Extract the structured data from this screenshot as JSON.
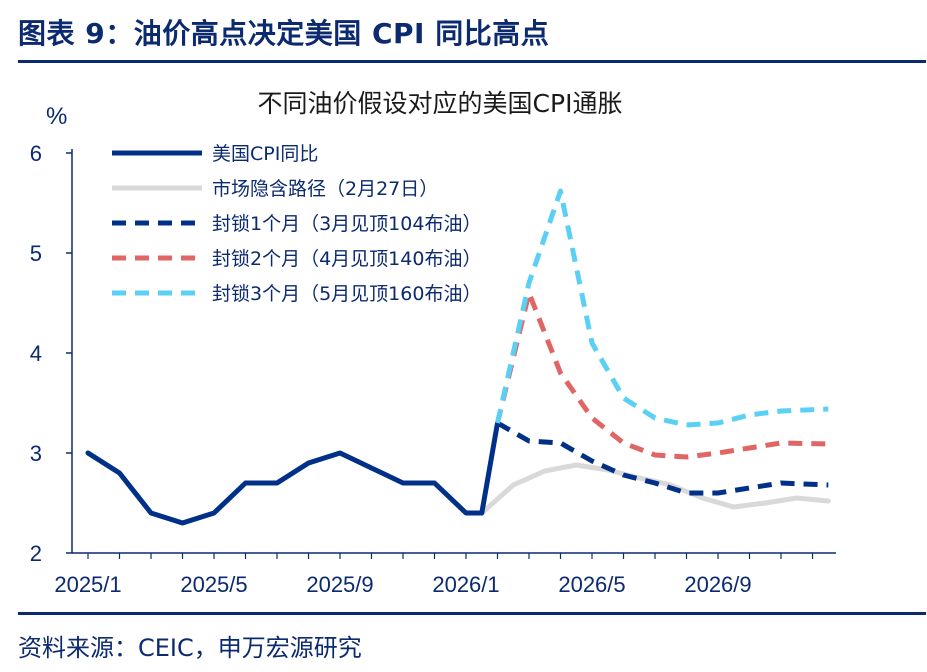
{
  "figure_title": "图表 9：油价高点决定美国 CPI 同比高点",
  "source": "资料来源：CEIC，申万宏源研究",
  "colors": {
    "navy": "#003087",
    "grey": "#d9d9d9",
    "red": "#e06666",
    "cyan": "#5bd0f5",
    "axis": "#0b2a6f"
  },
  "chart_data": {
    "type": "line",
    "title": "不同油价假设对应的美国CPI通胀",
    "ylabel": "%",
    "xlabel": "",
    "ylim": [
      2,
      6
    ],
    "yticks": [
      "2",
      "3",
      "4",
      "5",
      "6"
    ],
    "xlim": [
      0,
      23.5
    ],
    "xticks": [
      {
        "label": "2025/1",
        "x": 0
      },
      {
        "label": "2025/5",
        "x": 4
      },
      {
        "label": "2025/9",
        "x": 8
      },
      {
        "label": "2026/1",
        "x": 12
      },
      {
        "label": "2026/5",
        "x": 16
      },
      {
        "label": "2026/9",
        "x": 20
      }
    ],
    "grid": false,
    "legend_position": "top-left",
    "series": [
      {
        "name": "美国CPI同比",
        "color": "#003087",
        "style": "solid",
        "width": 5,
        "x": [
          0,
          1,
          2,
          3,
          4,
          5,
          6,
          7,
          8,
          9,
          10,
          11,
          12,
          12.5,
          13
        ],
        "y": [
          3.0,
          2.8,
          2.4,
          2.3,
          2.4,
          2.7,
          2.7,
          2.9,
          3.0,
          2.85,
          2.7,
          2.7,
          2.4,
          2.4,
          3.3
        ]
      },
      {
        "name": "市场隐含路径（2月27日）",
        "color": "#d9d9d9",
        "style": "solid",
        "width": 5,
        "x": [
          12.5,
          13.5,
          14.5,
          15.5,
          16.5,
          17.5,
          18.5,
          19.5,
          20.5,
          21.5,
          22.5,
          23.5
        ],
        "y": [
          2.4,
          2.68,
          2.82,
          2.88,
          2.83,
          2.75,
          2.68,
          2.55,
          2.46,
          2.5,
          2.55,
          2.52
        ]
      },
      {
        "name": "封锁1个月（3月见顶104布油）",
        "color": "#003087",
        "style": "dashed",
        "width": 5,
        "x": [
          13,
          14,
          15,
          16,
          17,
          18,
          19,
          20,
          21,
          22,
          23.5
        ],
        "y": [
          3.3,
          3.12,
          3.1,
          2.92,
          2.78,
          2.7,
          2.6,
          2.6,
          2.65,
          2.7,
          2.68
        ]
      },
      {
        "name": "封锁2个月（4月见顶140布油）",
        "color": "#e06666",
        "style": "dashed",
        "width": 5,
        "x": [
          13,
          14,
          15,
          16,
          17,
          18,
          19,
          20,
          21,
          22,
          23.5
        ],
        "y": [
          3.3,
          4.6,
          3.8,
          3.35,
          3.1,
          2.98,
          2.96,
          3.0,
          3.05,
          3.1,
          3.09
        ]
      },
      {
        "name": "封锁3个月（5月见顶160布油）",
        "color": "#5bd0f5",
        "style": "dashed",
        "width": 5,
        "x": [
          13,
          14,
          15,
          16,
          17,
          18,
          19,
          20,
          21,
          22,
          23.5
        ],
        "y": [
          3.3,
          4.7,
          5.62,
          4.1,
          3.55,
          3.35,
          3.28,
          3.3,
          3.38,
          3.42,
          3.44
        ]
      }
    ]
  }
}
